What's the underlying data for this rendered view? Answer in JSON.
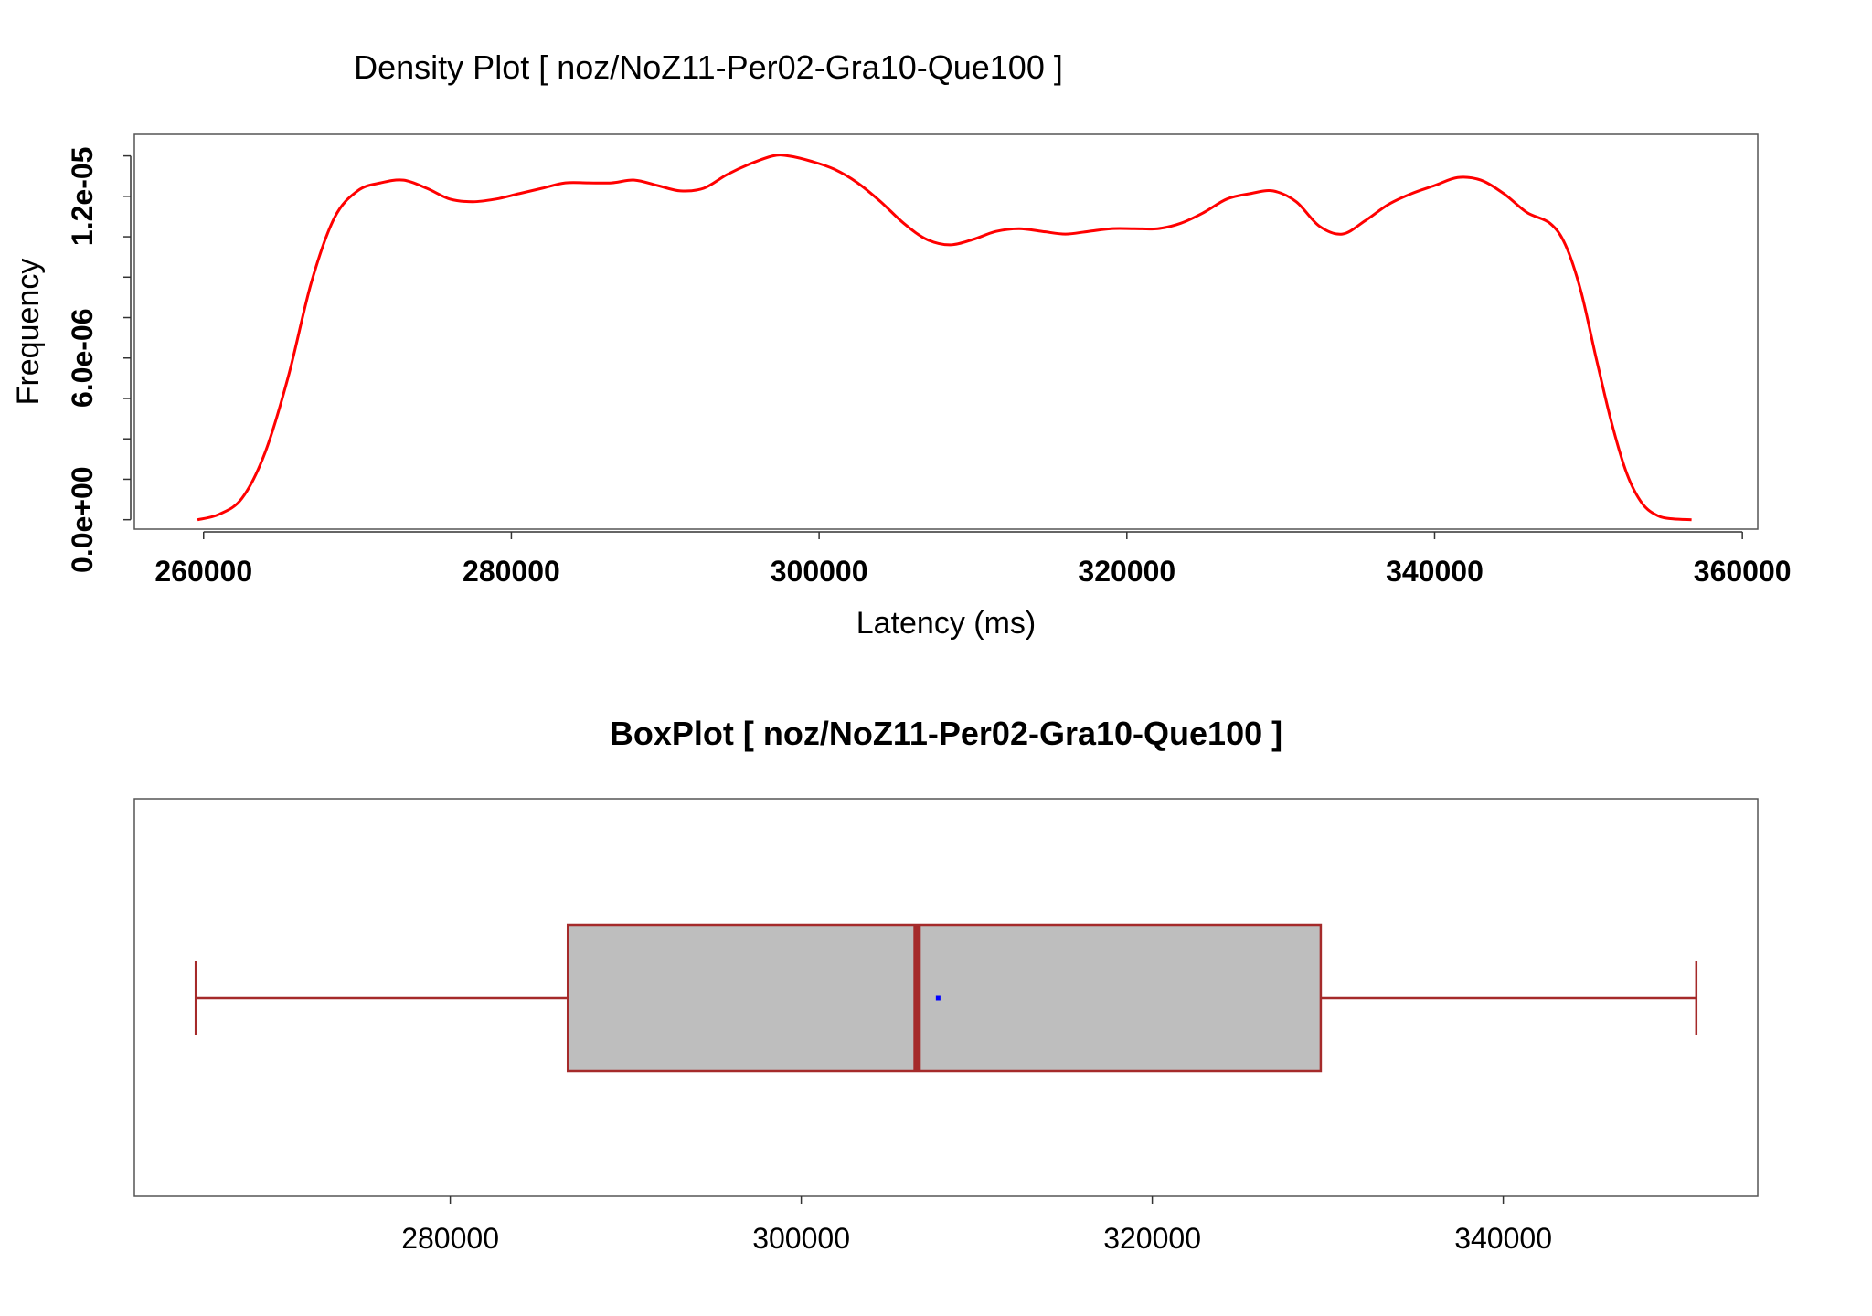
{
  "chart_data": [
    {
      "type": "line",
      "title": "Density Plot [ noz/NoZ11-Per02-Gra10-Que100 ]",
      "xlabel": "Latency (ms)",
      "ylabel": "Frequency",
      "xlim": [
        255500,
        361000
      ],
      "ylim": [
        -3.5e-07,
        1.43e-05
      ],
      "x_ticks": [
        260000,
        280000,
        300000,
        320000,
        340000,
        360000
      ],
      "x_tick_labels": [
        "260000",
        "280000",
        "300000",
        "320000",
        "340000",
        "360000"
      ],
      "y_ticks": [
        0,
        1.5e-06,
        3e-06,
        4.5e-06,
        6e-06,
        7.5e-06,
        9e-06,
        1.05e-05,
        1.2e-05,
        1.35e-05
      ],
      "y_tick_labels": [
        {
          "value": 0,
          "text": "0.0e+00"
        },
        {
          "value": 6e-06,
          "text": "6.0e-06"
        },
        {
          "value": 1.2e-05,
          "text": "1.2e-05"
        }
      ],
      "line_color": "#ff0000",
      "series": [
        {
          "x": [
            259600,
            261000,
            262500,
            264000,
            265500,
            267000,
            268500,
            270000,
            271500,
            273000,
            274500,
            276000,
            277500,
            279000,
            280500,
            282000,
            283500,
            285000,
            286500,
            288000,
            289500,
            291000,
            292500,
            294000,
            295500,
            297000,
            298000,
            299500,
            301000,
            302500,
            304000,
            305500,
            307000,
            308500,
            310000,
            311500,
            313000,
            314500,
            316000,
            317500,
            319000,
            320500,
            322000,
            323500,
            325000,
            326500,
            328000,
            329500,
            331000,
            332500,
            334000,
            335500,
            337000,
            338500,
            340000,
            341500,
            343000,
            344500,
            346000,
            347500,
            348500,
            349500,
            350500,
            351500,
            352500,
            353500,
            354500,
            355500,
            356700
          ],
          "y": [
            0.0,
            2e-07,
            8e-07,
            2.5e-06,
            5.3e-06,
            8.8e-06,
            1.12e-05,
            1.22e-05,
            1.25e-05,
            1.26e-05,
            1.23e-05,
            1.19e-05,
            1.18e-05,
            1.19e-05,
            1.21e-05,
            1.23e-05,
            1.25e-05,
            1.25e-05,
            1.25e-05,
            1.26e-05,
            1.24e-05,
            1.22e-05,
            1.23e-05,
            1.28e-05,
            1.32e-05,
            1.35e-05,
            1.35e-05,
            1.33e-05,
            1.3e-05,
            1.25e-05,
            1.18e-05,
            1.1e-05,
            1.04e-05,
            1.02e-05,
            1.04e-05,
            1.07e-05,
            1.08e-05,
            1.07e-05,
            1.06e-05,
            1.07e-05,
            1.08e-05,
            1.08e-05,
            1.08e-05,
            1.1e-05,
            1.14e-05,
            1.19e-05,
            1.21e-05,
            1.22e-05,
            1.18e-05,
            1.09e-05,
            1.06e-05,
            1.11e-05,
            1.17e-05,
            1.21e-05,
            1.24e-05,
            1.27e-05,
            1.26e-05,
            1.21e-05,
            1.14e-05,
            1.1e-05,
            1.02e-05,
            8.5e-06,
            6e-06,
            3.6e-06,
            1.7e-06,
            6e-07,
            1.5e-07,
            3e-08,
            0.0
          ]
        }
      ]
    },
    {
      "type": "boxplot",
      "title": "BoxPlot [ noz/NoZ11-Per02-Gra10-Que100 ]",
      "xlim": [
        262000,
        354500
      ],
      "x_ticks": [
        280000,
        300000,
        320000,
        340000
      ],
      "x_tick_labels": [
        "280000",
        "300000",
        "320000",
        "340000"
      ],
      "box": {
        "whisker_low": 265500,
        "q1": 286700,
        "median": 306600,
        "q3": 329600,
        "whisker_high": 351000,
        "mean": 307800
      },
      "box_fill": "#bebebe",
      "box_stroke": "#a52a2a",
      "mean_color": "#0000ff"
    }
  ]
}
